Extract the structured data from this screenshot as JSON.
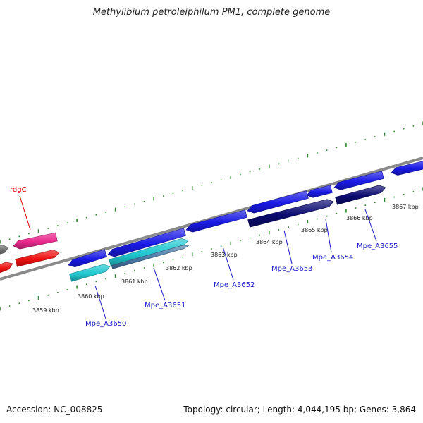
{
  "header": {
    "title": "Methylibium petroleiphilum PM1, complete genome"
  },
  "footer": {
    "accession": "Accession: NC_008825",
    "summary": "Topology: circular; Length: 4,044,195 bp; Genes: 3,864"
  },
  "scale": {
    "ticks": [
      {
        "label": "3859 kbp"
      },
      {
        "label": "3860 kbp"
      },
      {
        "label": "3861 kbp"
      },
      {
        "label": "3862 kbp"
      },
      {
        "label": "3863 kbp"
      },
      {
        "label": "3864 kbp"
      },
      {
        "label": "3865 kbp"
      },
      {
        "label": "3866 kbp"
      },
      {
        "label": "3867 kbp"
      }
    ]
  },
  "genes": {
    "labels": [
      {
        "text": "rdgC",
        "color": "#e00000"
      },
      {
        "text": "Mpe_A3650",
        "color": "#1a1ac8"
      },
      {
        "text": "Mpe_A3651",
        "color": "#1a1ac8"
      },
      {
        "text": "Mpe_A3652",
        "color": "#1a1ac8"
      },
      {
        "text": "Mpe_A3653",
        "color": "#1a1ac8"
      },
      {
        "text": "Mpe_A3654",
        "color": "#1a1ac8"
      },
      {
        "text": "Mpe_A3655",
        "color": "#1a1ac8"
      }
    ]
  },
  "colors": {
    "backbone": "#8a8a8a",
    "scale_dots": "#2e8b2e",
    "forward_gene": "#1a1ae6",
    "reverse_gene_teal": "#20c8d0",
    "reverse_gene_navy": "#0b0b70",
    "rdgC": "#e8288c",
    "red_gene": "#ee1010",
    "grey_gene": "#707070"
  }
}
